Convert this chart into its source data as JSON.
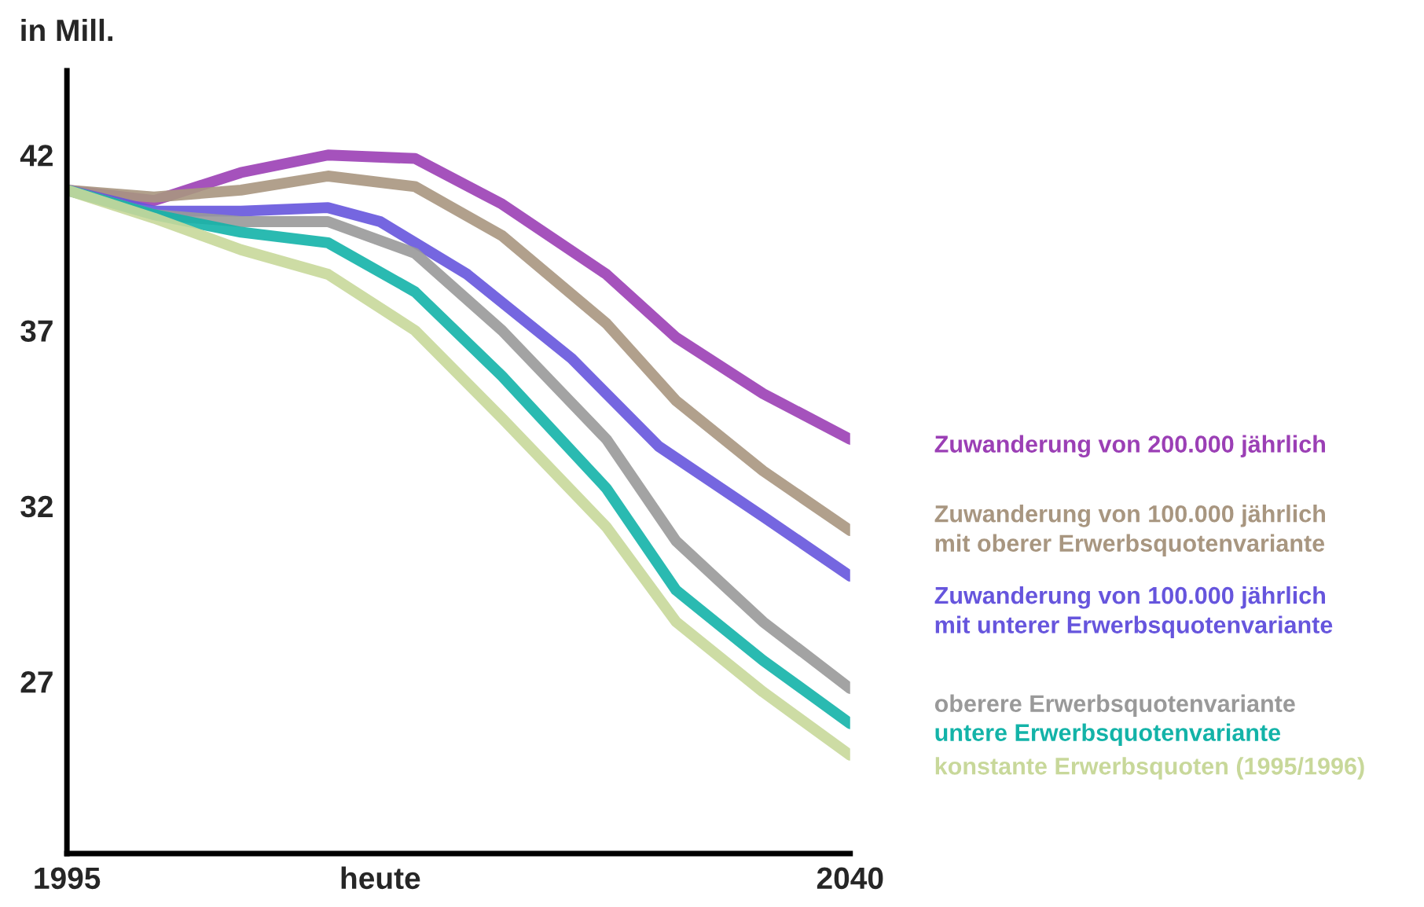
{
  "chart_data": {
    "type": "line",
    "ylabel": "in Mill.",
    "xlim": [
      1995,
      2040
    ],
    "xticks": [
      1995,
      {
        "value": 2013,
        "label": "heute"
      },
      2040
    ],
    "ylim": [
      22.1,
      44.4
    ],
    "yticks": [
      27,
      32,
      37,
      42
    ],
    "legend": false,
    "marker": "none",
    "line_style": "solid",
    "series": [
      {
        "name": "Zuwanderung von 200.000 jährlich",
        "color": "#9b3fb5",
        "x": [
          1995,
          2000,
          2005,
          2010,
          2015,
          2020,
          2026,
          2030,
          2035,
          2040
        ],
        "values": [
          41.0,
          40.7,
          41.5,
          42.0,
          41.9,
          40.6,
          38.6,
          36.8,
          35.2,
          33.9
        ]
      },
      {
        "name": "Zuwanderung von 100.000 jährlich\nmit oberer Erwerbsquotenvariante",
        "color": "#a89680",
        "x": [
          1995,
          2000,
          2005,
          2010,
          2015,
          2020,
          2026,
          2030,
          2035,
          2040
        ],
        "values": [
          41.0,
          40.8,
          41.0,
          41.4,
          41.1,
          39.7,
          37.2,
          35.0,
          33.0,
          31.3
        ]
      },
      {
        "name": "Zuwanderung von 100.000 jährlich\nmit unterer Erwerbsquotenvariante",
        "color": "#6655dd",
        "x": [
          1995,
          2000,
          2005,
          2010,
          2013,
          2018,
          2024,
          2029,
          2035,
          2040
        ],
        "values": [
          41.0,
          40.4,
          40.4,
          40.5,
          40.1,
          38.6,
          36.2,
          33.7,
          31.7,
          30.0
        ]
      },
      {
        "name": "oberere Erwerbsquotenvariante",
        "color": "#999999",
        "x": [
          1995,
          2000,
          2005,
          2010,
          2015,
          2020,
          2026,
          2030,
          2035,
          2040
        ],
        "values": [
          41.0,
          40.3,
          40.1,
          40.1,
          39.2,
          37.0,
          33.9,
          31.0,
          28.7,
          26.8
        ]
      },
      {
        "name": "untere Erwerbsquotenvariante",
        "color": "#13b3a8",
        "x": [
          1995,
          2000,
          2005,
          2010,
          2015,
          2020,
          2026,
          2030,
          2035,
          2040
        ],
        "values": [
          41.0,
          40.3,
          39.8,
          39.5,
          38.1,
          35.7,
          32.5,
          29.6,
          27.6,
          25.8
        ]
      },
      {
        "name": "konstante Erwerbsquoten (1995/1996)",
        "color": "#c8d89a",
        "x": [
          1995,
          2000,
          2005,
          2010,
          2015,
          2020,
          2026,
          2030,
          2035,
          2040
        ],
        "values": [
          41.0,
          40.2,
          39.3,
          38.6,
          37.0,
          34.5,
          31.4,
          28.7,
          26.7,
          24.9
        ]
      }
    ]
  }
}
